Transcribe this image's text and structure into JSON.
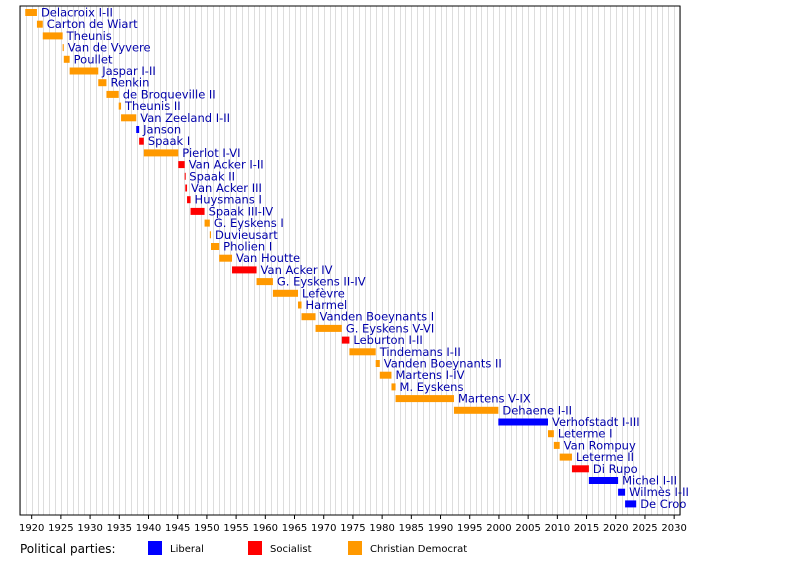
{
  "chart_data": {
    "type": "timeline",
    "xlim": [
      1918,
      2031
    ],
    "x_ticks": [
      1920,
      1925,
      1930,
      1935,
      1940,
      1945,
      1950,
      1955,
      1960,
      1965,
      1970,
      1975,
      1980,
      1985,
      1990,
      1995,
      2000,
      2005,
      2010,
      2015,
      2020,
      2025,
      2030
    ],
    "grid": true,
    "party_colors": {
      "Liberal": "#0000ff",
      "Socialist": "#ff0000",
      "Christian Democrat": "#ff9900"
    },
    "governments": [
      {
        "name": "Delacroix I-II",
        "start": 1918.9,
        "end": 1920.9,
        "party": "Christian Democrat"
      },
      {
        "name": "Carton de Wiart",
        "start": 1920.9,
        "end": 1921.9,
        "party": "Christian Democrat"
      },
      {
        "name": "Theunis",
        "start": 1921.9,
        "end": 1925.3,
        "party": "Christian Democrat"
      },
      {
        "name": "Van de Vyvere",
        "start": 1925.3,
        "end": 1925.5,
        "party": "Christian Democrat"
      },
      {
        "name": "Poullet",
        "start": 1925.5,
        "end": 1926.5,
        "party": "Christian Democrat"
      },
      {
        "name": "Jaspar I-II",
        "start": 1926.5,
        "end": 1931.4,
        "party": "Christian Democrat"
      },
      {
        "name": "Renkin",
        "start": 1931.4,
        "end": 1932.8,
        "party": "Christian Democrat"
      },
      {
        "name": "de Broqueville II",
        "start": 1932.8,
        "end": 1934.9,
        "party": "Christian Democrat"
      },
      {
        "name": "Theunis II",
        "start": 1934.9,
        "end": 1935.3,
        "party": "Christian Democrat"
      },
      {
        "name": "Van Zeeland I-II",
        "start": 1935.3,
        "end": 1937.9,
        "party": "Christian Democrat"
      },
      {
        "name": "Janson",
        "start": 1937.9,
        "end": 1938.4,
        "party": "Liberal"
      },
      {
        "name": "Spaak I",
        "start": 1938.4,
        "end": 1939.2,
        "party": "Socialist"
      },
      {
        "name": "Pierlot I-VI",
        "start": 1939.2,
        "end": 1945.1,
        "party": "Christian Democrat"
      },
      {
        "name": "Van Acker I-II",
        "start": 1945.1,
        "end": 1946.2,
        "party": "Socialist"
      },
      {
        "name": "Spaak II",
        "start": 1946.2,
        "end": 1946.3,
        "party": "Socialist"
      },
      {
        "name": "Van Acker III",
        "start": 1946.3,
        "end": 1946.6,
        "party": "Socialist"
      },
      {
        "name": "Huysmans I",
        "start": 1946.6,
        "end": 1947.2,
        "party": "Socialist"
      },
      {
        "name": "Spaak III-IV",
        "start": 1947.2,
        "end": 1949.6,
        "party": "Socialist"
      },
      {
        "name": "G. Eyskens I",
        "start": 1949.6,
        "end": 1950.5,
        "party": "Christian Democrat"
      },
      {
        "name": "Duvieusart",
        "start": 1950.5,
        "end": 1950.7,
        "party": "Christian Democrat"
      },
      {
        "name": "Pholien I",
        "start": 1950.7,
        "end": 1952.1,
        "party": "Christian Democrat"
      },
      {
        "name": "Van Houtte",
        "start": 1952.1,
        "end": 1954.3,
        "party": "Christian Democrat"
      },
      {
        "name": "Van Acker IV",
        "start": 1954.3,
        "end": 1958.5,
        "party": "Socialist"
      },
      {
        "name": "G. Eyskens II-IV",
        "start": 1958.5,
        "end": 1961.3,
        "party": "Christian Democrat"
      },
      {
        "name": "Lefèvre",
        "start": 1961.3,
        "end": 1965.6,
        "party": "Christian Democrat"
      },
      {
        "name": "Harmel",
        "start": 1965.6,
        "end": 1966.2,
        "party": "Christian Democrat"
      },
      {
        "name": "Vanden Boeynants I",
        "start": 1966.2,
        "end": 1968.6,
        "party": "Christian Democrat"
      },
      {
        "name": "G. Eyskens V-VI",
        "start": 1968.6,
        "end": 1973.1,
        "party": "Christian Democrat"
      },
      {
        "name": "Leburton I-II",
        "start": 1973.1,
        "end": 1974.4,
        "party": "Socialist"
      },
      {
        "name": "Tindemans I-II",
        "start": 1974.4,
        "end": 1978.9,
        "party": "Christian Democrat"
      },
      {
        "name": "Vanden Boeynants II",
        "start": 1978.9,
        "end": 1979.6,
        "party": "Christian Democrat"
      },
      {
        "name": "Martens I-IV",
        "start": 1979.6,
        "end": 1981.6,
        "party": "Christian Democrat"
      },
      {
        "name": "M. Eyskens",
        "start": 1981.6,
        "end": 1982.3,
        "party": "Christian Democrat"
      },
      {
        "name": "Martens V-IX",
        "start": 1982.3,
        "end": 1992.3,
        "party": "Christian Democrat"
      },
      {
        "name": "Dehaene I-II",
        "start": 1992.3,
        "end": 1999.9,
        "party": "Christian Democrat"
      },
      {
        "name": "Verhofstadt I-III",
        "start": 1999.9,
        "end": 2008.4,
        "party": "Liberal"
      },
      {
        "name": "Leterme I",
        "start": 2008.4,
        "end": 2009.4,
        "party": "Christian Democrat"
      },
      {
        "name": "Van Rompuy",
        "start": 2009.4,
        "end": 2010.4,
        "party": "Christian Democrat"
      },
      {
        "name": "Leterme II",
        "start": 2010.4,
        "end": 2012.5,
        "party": "Christian Democrat"
      },
      {
        "name": "Di Rupo",
        "start": 2012.5,
        "end": 2015.4,
        "party": "Socialist"
      },
      {
        "name": "Michel I-II",
        "start": 2015.4,
        "end": 2020.4,
        "party": "Liberal"
      },
      {
        "name": "Wilmès I-II",
        "start": 2020.4,
        "end": 2021.6,
        "party": "Liberal"
      },
      {
        "name": "De Croo",
        "start": 2021.6,
        "end": 2023.5,
        "party": "Liberal"
      }
    ]
  },
  "legend": {
    "title": "Political parties:",
    "items": [
      {
        "label": "Liberal",
        "color": "#0000ff"
      },
      {
        "label": "Socialist",
        "color": "#ff0000"
      },
      {
        "label": "Christian Democrat",
        "color": "#ff9900"
      }
    ]
  }
}
